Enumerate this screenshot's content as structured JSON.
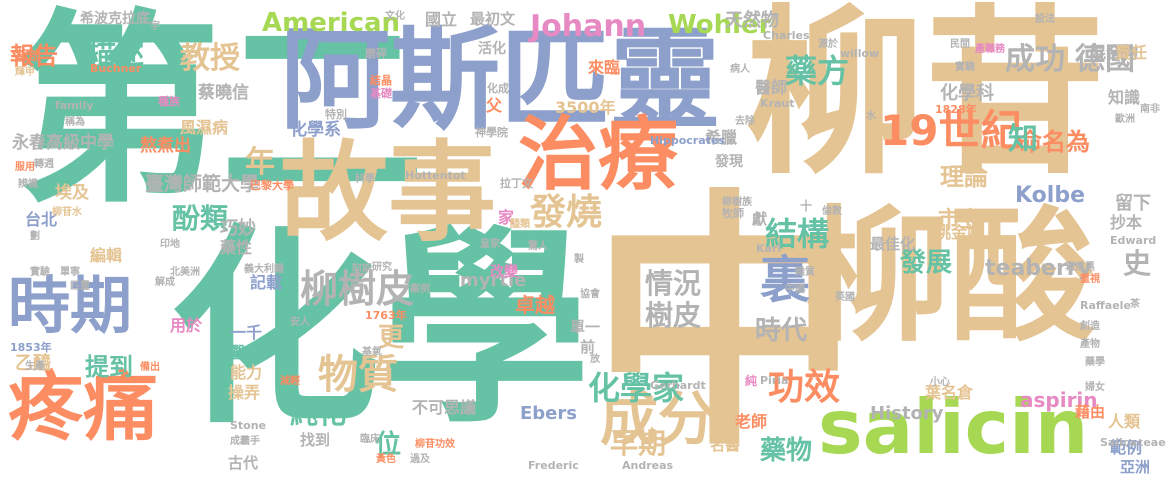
{
  "palette": {
    "teal": "#66c2a5",
    "salmon": "#fc8d62",
    "periwinkle": "#8da0cb",
    "pink": "#e78ac3",
    "lime": "#a6d854",
    "yellow": "#ffd92f",
    "tan": "#e5c494",
    "gray": "#b3b3b3"
  },
  "words": [
    {
      "text": "中",
      "color": "#e5c494"
    },
    {
      "text": "化學",
      "color": "#66c2a5"
    },
    {
      "text": "第二",
      "color": "#66c2a5"
    },
    {
      "text": "柳苷",
      "color": "#e5c494"
    },
    {
      "text": "柳酸",
      "color": "#e5c494"
    },
    {
      "text": "阿斯匹靈",
      "color": "#8da0cb"
    },
    {
      "text": "故事",
      "color": "#e5c494"
    },
    {
      "text": "治療",
      "color": "#fc8d62"
    },
    {
      "text": "salicin",
      "color": "#a6d854"
    },
    {
      "text": "疼痛",
      "color": "#fc8d62"
    },
    {
      "text": "時期",
      "color": "#8da0cb"
    },
    {
      "text": "成分",
      "color": "#e5c494"
    },
    {
      "text": "19世紀",
      "color": "#fc8d62"
    },
    {
      "text": "功效",
      "color": "#fc8d62"
    },
    {
      "text": "裏",
      "color": "#8da0cb"
    },
    {
      "text": "柳樹皮",
      "color": "#b3b3b3"
    },
    {
      "text": "藥方",
      "color": "#66c2a5"
    },
    {
      "text": "物質",
      "color": "#e5c494"
    },
    {
      "text": "發燒",
      "color": "#e5c494"
    },
    {
      "text": "結構",
      "color": "#66c2a5"
    },
    {
      "text": "化學家",
      "color": "#66c2a5"
    },
    {
      "text": "Johann",
      "color": "#e78ac3"
    },
    {
      "text": "Wohler",
      "color": "#a6d854"
    },
    {
      "text": "American",
      "color": "#a6d854"
    },
    {
      "text": "成功",
      "color": "#b3b3b3"
    },
    {
      "text": "德國",
      "color": "#b3b3b3"
    },
    {
      "text": "教授",
      "color": "#e5c494"
    },
    {
      "text": "描述",
      "color": "#66c2a5"
    },
    {
      "text": "報告",
      "color": "#fc8d62"
    },
    {
      "text": "情況",
      "color": "#b3b3b3"
    },
    {
      "text": "樹皮",
      "color": "#b3b3b3"
    },
    {
      "text": "時代",
      "color": "#b3b3b3"
    },
    {
      "text": "早期",
      "color": "#e5c494"
    },
    {
      "text": "藥物",
      "color": "#66c2a5"
    },
    {
      "text": "純化",
      "color": "#66c2a5"
    },
    {
      "text": "酚類",
      "color": "#66c2a5"
    },
    {
      "text": "提到",
      "color": "#66c2a5"
    },
    {
      "text": "發展",
      "color": "#66c2a5"
    },
    {
      "text": "teaberry",
      "color": "#b3b3b3"
    },
    {
      "text": "命名為",
      "color": "#fc8d62"
    },
    {
      "text": "Kolbe",
      "color": "#8da0cb"
    },
    {
      "text": "aspirin",
      "color": "#e78ac3"
    },
    {
      "text": "史",
      "color": "#b3b3b3"
    },
    {
      "text": "知",
      "color": "#66c2a5"
    },
    {
      "text": "理論",
      "color": "#e5c494"
    },
    {
      "text": "市立",
      "color": "#e5c494"
    },
    {
      "text": "年",
      "color": "#e5c494"
    },
    {
      "text": "更",
      "color": "#e5c494"
    },
    {
      "text": "位",
      "color": "#66c2a5"
    },
    {
      "text": "卓越",
      "color": "#fc8d62"
    },
    {
      "text": "myrtle",
      "color": "#b3b3b3"
    },
    {
      "text": "History",
      "color": "#b3b3b3"
    },
    {
      "text": "Ebers",
      "color": "#8da0cb"
    },
    {
      "text": "永春高級中學",
      "color": "#b3b3b3"
    },
    {
      "text": "臺灣師範大學",
      "color": "#b3b3b3"
    },
    {
      "text": "蔡曉信",
      "color": "#b3b3b3"
    },
    {
      "text": "風濕病",
      "color": "#e5c494"
    },
    {
      "text": "熬煮出",
      "color": "#fc8d62"
    },
    {
      "text": "化學系",
      "color": "#8da0cb"
    },
    {
      "text": "化學科",
      "color": "#b3b3b3"
    },
    {
      "text": "天然物",
      "color": "#b3b3b3"
    },
    {
      "text": "醫師",
      "color": "#b3b3b3"
    },
    {
      "text": "乙醯",
      "color": "#e5c494"
    },
    {
      "text": "台北",
      "color": "#8da0cb"
    },
    {
      "text": "巧妙",
      "color": "#b3b3b3"
    },
    {
      "text": "藥性",
      "color": "#b3b3b3"
    },
    {
      "text": "埃及",
      "color": "#e5c494"
    },
    {
      "text": "不可思議",
      "color": "#b3b3b3"
    },
    {
      "text": "3500年",
      "color": "#e5c494"
    },
    {
      "text": "人類",
      "color": "#e5c494"
    },
    {
      "text": "葉名倉",
      "color": "#e5c494"
    },
    {
      "text": "桃金孃",
      "color": "#e5c494"
    },
    {
      "text": "留下",
      "color": "#b3b3b3"
    },
    {
      "text": "抄本",
      "color": "#b3b3b3"
    },
    {
      "text": "知識",
      "color": "#b3b3b3"
    },
    {
      "text": "混合物",
      "color": "#b3b3b3"
    },
    {
      "text": "責任",
      "color": "#e5c494"
    },
    {
      "text": "希臘",
      "color": "#b3b3b3"
    },
    {
      "text": "發現",
      "color": "#b3b3b3"
    },
    {
      "text": "一千",
      "color": "#8da0cb"
    },
    {
      "text": "醫學",
      "color": "#66c2a5"
    },
    {
      "text": "能力",
      "color": "#e5c494"
    },
    {
      "text": "記載",
      "color": "#8da0cb"
    },
    {
      "text": "用於",
      "color": "#e78ac3"
    },
    {
      "text": "操弄",
      "color": "#e5c494"
    },
    {
      "text": "老師",
      "color": "#fc8d62"
    },
    {
      "text": "名醫",
      "color": "#e5c494"
    },
    {
      "text": "找到",
      "color": "#b3b3b3"
    },
    {
      "text": "古代",
      "color": "#b3b3b3"
    },
    {
      "text": "單一",
      "color": "#b3b3b3"
    },
    {
      "text": "前",
      "color": "#b3b3b3"
    },
    {
      "text": "國立",
      "color": "#b3b3b3"
    },
    {
      "text": "最初文",
      "color": "#b3b3b3"
    },
    {
      "text": "希波克拉底",
      "color": "#b3b3b3"
    },
    {
      "text": "背部",
      "color": "#fc8d62"
    },
    {
      "text": "編輯",
      "color": "#e5c494"
    },
    {
      "text": "改變",
      "color": "#e78ac3"
    },
    {
      "text": "範例",
      "color": "#8da0cb"
    },
    {
      "text": "藉由",
      "color": "#fc8d62"
    },
    {
      "text": "亞洲",
      "color": "#8da0cb"
    },
    {
      "text": "最佳化",
      "color": "#b3b3b3"
    },
    {
      "text": "來臨",
      "color": "#fc8d62"
    },
    {
      "text": "活化",
      "color": "#b3b3b3"
    },
    {
      "text": "父",
      "color": "#fc8d62"
    },
    {
      "text": "獻",
      "color": "#b3b3b3"
    },
    {
      "text": "家",
      "color": "#e78ac3"
    },
    {
      "text": "Hippocrates",
      "color": "#8da0cb"
    },
    {
      "text": "Charles",
      "color": "#b3b3b3"
    },
    {
      "text": "willow",
      "color": "#b3b3b3"
    },
    {
      "text": "Buchner",
      "color": "#fc8d62"
    },
    {
      "text": "family",
      "color": "#b3b3b3"
    },
    {
      "text": "Hottentot",
      "color": "#b3b3b3"
    },
    {
      "text": "Kraut",
      "color": "#b3b3b3"
    },
    {
      "text": "Edward",
      "color": "#b3b3b3"
    },
    {
      "text": "Gerhardt",
      "color": "#b3b3b3"
    },
    {
      "text": "Karl",
      "color": "#b3b3b3"
    },
    {
      "text": "Raffaele",
      "color": "#b3b3b3"
    },
    {
      "text": "Piria",
      "color": "#b3b3b3"
    },
    {
      "text": "Stone",
      "color": "#b3b3b3"
    },
    {
      "text": "Frederic",
      "color": "#b3b3b3"
    },
    {
      "text": "Andreas",
      "color": "#b3b3b3"
    },
    {
      "text": "Salicaceae",
      "color": "#b3b3b3"
    },
    {
      "text": "1853年",
      "color": "#8da0cb"
    },
    {
      "text": "1763年",
      "color": "#fc8d62"
    },
    {
      "text": "1828年",
      "color": "#fc8d62"
    },
    {
      "text": "文化",
      "color": "#b3b3b3"
    },
    {
      "text": "磨碎",
      "color": "#b3b3b3"
    },
    {
      "text": "結晶",
      "color": "#fc8d62"
    },
    {
      "text": "基礎",
      "color": "#e78ac3"
    },
    {
      "text": "化成",
      "color": "#b3b3b3"
    },
    {
      "text": "特別",
      "color": "#b3b3b3"
    },
    {
      "text": "神學院",
      "color": "#b3b3b3"
    },
    {
      "text": "拉丁文",
      "color": "#b3b3b3"
    },
    {
      "text": "巴黎大學",
      "color": "#fc8d62"
    },
    {
      "text": "科學",
      "color": "#b3b3b3"
    },
    {
      "text": "種族",
      "color": "#e78ac3"
    },
    {
      "text": "去除",
      "color": "#b3b3b3"
    },
    {
      "text": "病人",
      "color": "#b3b3b3"
    },
    {
      "text": "源於",
      "color": "#b3b3b3"
    },
    {
      "text": "設法",
      "color": "#b3b3b3"
    },
    {
      "text": "產職務",
      "color": "#e78ac3"
    },
    {
      "text": "民間",
      "color": "#b3b3b3"
    },
    {
      "text": "實驗",
      "color": "#b3b3b3"
    },
    {
      "text": "令",
      "color": "#e5c494"
    },
    {
      "text": "整發表",
      "color": "#e5c494"
    },
    {
      "text": "南非",
      "color": "#b3b3b3"
    },
    {
      "text": "歐洲",
      "color": "#b3b3b3"
    },
    {
      "text": "水",
      "color": "#b3b3b3"
    },
    {
      "text": "稱為",
      "color": "#b3b3b3"
    },
    {
      "text": "輝甲",
      "color": "#e5c494"
    },
    {
      "text": "牧師",
      "color": "#b3b3b3"
    },
    {
      "text": "柳樹族",
      "color": "#b3b3b3"
    },
    {
      "text": "倫敦",
      "color": "#b3b3b3"
    },
    {
      "text": "英國",
      "color": "#b3b3b3"
    },
    {
      "text": "義大利籍",
      "color": "#b3b3b3"
    },
    {
      "text": "研究",
      "color": "#b3b3b3"
    },
    {
      "text": "案例",
      "color": "#b3b3b3"
    },
    {
      "text": "皇家",
      "color": "#b3b3b3"
    },
    {
      "text": "驚人",
      "color": "#b3b3b3"
    },
    {
      "text": "製",
      "color": "#b3b3b3"
    },
    {
      "text": "醯類",
      "color": "#e5c494"
    },
    {
      "text": "阿斯",
      "color": "#b3b3b3"
    },
    {
      "text": "柳苷水",
      "color": "#e5c494"
    },
    {
      "text": "劃",
      "color": "#b3b3b3"
    },
    {
      "text": "服用",
      "color": "#fc8d62"
    },
    {
      "text": "辨識",
      "color": "#b3b3b3"
    },
    {
      "text": "印地",
      "color": "#b3b3b3"
    },
    {
      "text": "解成",
      "color": "#b3b3b3"
    },
    {
      "text": "北美洲",
      "color": "#b3b3b3"
    },
    {
      "text": "單寧",
      "color": "#b3b3b3"
    },
    {
      "text": "實驗",
      "color": "#b3b3b3"
    },
    {
      "text": "匹靈",
      "color": "#b3b3b3"
    },
    {
      "text": "安人",
      "color": "#b3b3b3"
    },
    {
      "text": "協會",
      "color": "#b3b3b3"
    },
    {
      "text": "中國",
      "color": "#b3b3b3"
    },
    {
      "text": "雜質",
      "color": "#b3b3b3"
    },
    {
      "text": "重視",
      "color": "#fc8d62"
    },
    {
      "text": "寫尼黑",
      "color": "#b3b3b3"
    },
    {
      "text": "創造",
      "color": "#b3b3b3"
    },
    {
      "text": "產物",
      "color": "#b3b3b3"
    },
    {
      "text": "婦女",
      "color": "#b3b3b3"
    },
    {
      "text": "藥學",
      "color": "#b3b3b3"
    },
    {
      "text": "生產",
      "color": "#b3b3b3"
    },
    {
      "text": "備出",
      "color": "#fc8d62"
    },
    {
      "text": "減輕",
      "color": "#fc8d62"
    },
    {
      "text": "基氧",
      "color": "#b3b3b3"
    },
    {
      "text": "若手",
      "color": "#b3b3b3"
    },
    {
      "text": "成果",
      "color": "#b3b3b3"
    },
    {
      "text": "臨床",
      "color": "#b3b3b3"
    },
    {
      "text": "過及",
      "color": "#b3b3b3"
    },
    {
      "text": "黃色",
      "color": "#fc8d62"
    },
    {
      "text": "柳苷功效",
      "color": "#fc8d62"
    },
    {
      "text": "放",
      "color": "#b3b3b3"
    },
    {
      "text": "小心",
      "color": "#b3b3b3"
    },
    {
      "text": "純",
      "color": "#e78ac3"
    },
    {
      "text": "宇",
      "color": "#b3b3b3"
    },
    {
      "text": "十",
      "color": "#b3b3b3"
    },
    {
      "text": "轉週",
      "color": "#b3b3b3"
    },
    {
      "text": "茶",
      "color": "#b3b3b3"
    }
  ]
}
